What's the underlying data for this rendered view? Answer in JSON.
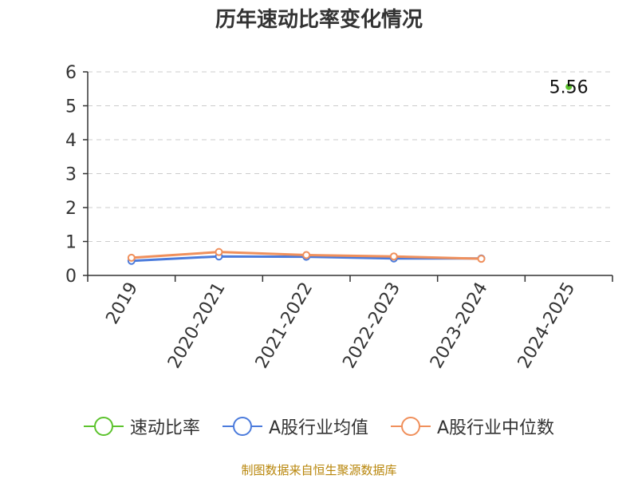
{
  "title": "历年速动比率变化情况",
  "source": "制图数据来自恒生聚源数据库",
  "chart_data": {
    "type": "line",
    "categories": [
      "2019",
      "2020-2021",
      "2021-2022",
      "2022-2023",
      "2023-2024",
      "2024-2025"
    ],
    "ylim": [
      0,
      6
    ],
    "yticks": [
      0,
      1,
      2,
      3,
      4,
      5,
      6
    ],
    "grid": true,
    "legend_position": "bottom",
    "series": [
      {
        "name": "速动比率",
        "color": "#5dc32e",
        "values": [
          null,
          null,
          null,
          null,
          null,
          5.56
        ],
        "show_labels": true
      },
      {
        "name": "A股行业均值",
        "color": "#4b7bdc",
        "values": [
          0.43,
          0.56,
          0.55,
          0.5,
          0.5,
          null
        ],
        "show_labels": false
      },
      {
        "name": "A股行业中位数",
        "color": "#f0905c",
        "values": [
          0.52,
          0.69,
          0.6,
          0.56,
          0.49,
          null
        ],
        "show_labels": false
      }
    ]
  }
}
